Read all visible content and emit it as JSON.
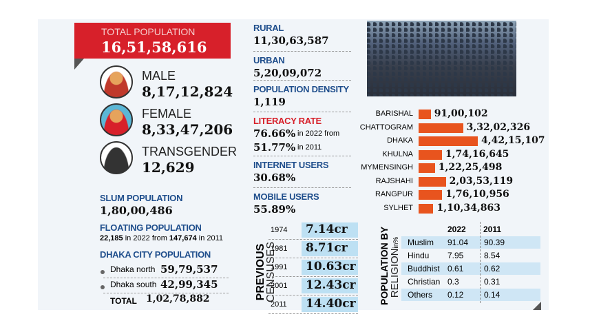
{
  "total_population": {
    "label": "TOTAL POPULATION",
    "value": "16,51,58,616"
  },
  "gender": [
    {
      "label": "MALE",
      "value": "8,17,12,824"
    },
    {
      "label": "FEMALE",
      "value": "8,33,47,206"
    },
    {
      "label": "TRANSGENDER",
      "value": "12,629"
    }
  ],
  "slum_population": {
    "label": "SLUM POPULATION",
    "value": "1,80,00,486"
  },
  "floating_population": {
    "label": "FLOATING POPULATION",
    "detail": [
      "22,185",
      " in 2022 from ",
      "147,674",
      " in 2011"
    ]
  },
  "dhaka_city": {
    "label": "DHAKA CITY POPULATION",
    "rows": [
      [
        "Dhaka north",
        "59,79,537"
      ],
      [
        "Dhaka south",
        "42,99,345"
      ],
      [
        "TOTAL",
        "1,02,78,882"
      ]
    ]
  },
  "stats": [
    {
      "label": "RURAL",
      "value": [
        "11,30,63,587"
      ]
    },
    {
      "label": "URBAN",
      "value": [
        "5,20,09,072"
      ]
    },
    {
      "label": "POPULATION DENSITY",
      "value": [
        "1,119"
      ]
    },
    {
      "label": "LITERACY RATE",
      "value": [
        "76.66%",
        " in 2022 from ",
        "51.77%",
        " in 2011"
      ]
    },
    {
      "label": "INTERNET USERS",
      "value": [
        "30.68%"
      ]
    },
    {
      "label": "MOBILE USERS",
      "value": [
        "55.89%"
      ]
    }
  ],
  "previous_censuses": {
    "label": [
      "PREVIOUS",
      "CENSUSES"
    ],
    "rows": [
      [
        "1974",
        "7.14cr"
      ],
      [
        "1981",
        "8.71cr"
      ],
      [
        "1991",
        "10.63cr"
      ],
      [
        "2001",
        "12.43cr"
      ],
      [
        "2011",
        "14.40cr"
      ]
    ]
  },
  "divisions": {
    "categories": [
      "BARISHAL",
      "CHATTOGRAM",
      "DHAKA",
      "KHULNA",
      "MYMENSINGH",
      "RAJSHAHI",
      "RANGPUR",
      "SYLHET"
    ],
    "values": [
      9100102,
      33202326,
      44215107,
      17416645,
      12225498,
      20353119,
      17610956,
      11034863
    ],
    "value_labels": [
      "91,00,102",
      "3,32,02,326",
      "4,42,15,107",
      "1,74,16,645",
      "1,22,25,498",
      "2,03,53,119",
      "1,76,10,956",
      "1,10,34,863"
    ],
    "color": "#e8541e"
  },
  "religion": {
    "label": "POPULATION BY",
    "sublabel": "RELIGION",
    "unit": "in%",
    "columns": [
      "2022",
      "2011"
    ],
    "rows": [
      [
        "Muslim",
        "91.04",
        "90.39"
      ],
      [
        "Hindu",
        "7.95",
        "8.54"
      ],
      [
        "Buddhist",
        "0.61",
        "0.62"
      ],
      [
        "Christian",
        "0.3",
        "0.31"
      ],
      [
        "Others",
        "0.12",
        "0.14"
      ]
    ]
  }
}
